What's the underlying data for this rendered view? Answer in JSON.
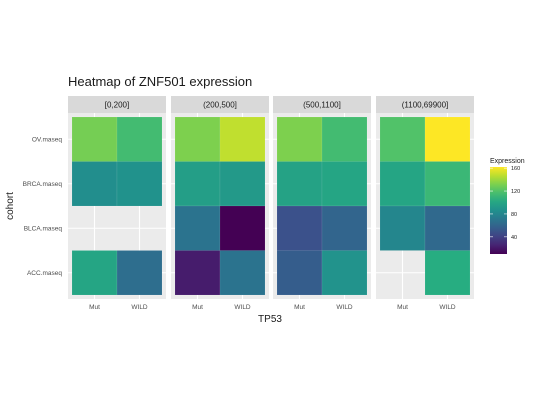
{
  "chart_data": {
    "type": "heatmap",
    "title": "Heatmap of ZNF501 expression",
    "xlabel": "TP53",
    "ylabel": "cohort",
    "x_categories": [
      "Mut",
      "WILD"
    ],
    "y_categories": [
      "ACC.maseq",
      "BLCA.maseq",
      "BRCA.maseq",
      "OV.maseq"
    ],
    "facets": [
      {
        "label": "[0,200]",
        "values": {
          "OV.maseq": {
            "Mut": 130,
            "WILD": 115
          },
          "BRCA.maseq": {
            "Mut": 85,
            "WILD": 87
          },
          "BLCA.maseq": {
            "Mut": null,
            "WILD": null
          },
          "ACC.maseq": {
            "Mut": 100,
            "WILD": 65
          }
        }
      },
      {
        "label": "(200,500]",
        "values": {
          "OV.maseq": {
            "Mut": 132,
            "WILD": 148
          },
          "BRCA.maseq": {
            "Mut": 95,
            "WILD": 92
          },
          "BLCA.maseq": {
            "Mut": 68,
            "WILD": 10
          },
          "ACC.maseq": {
            "Mut": 22,
            "WILD": 68
          }
        }
      },
      {
        "label": "(500,1100]",
        "values": {
          "OV.maseq": {
            "Mut": 132,
            "WILD": 115
          },
          "BRCA.maseq": {
            "Mut": 98,
            "WILD": 100
          },
          "BLCA.maseq": {
            "Mut": 48,
            "WILD": 60
          },
          "ACC.maseq": {
            "Mut": 55,
            "WILD": 88
          }
        }
      },
      {
        "label": "(1100,69900]",
        "values": {
          "OV.maseq": {
            "Mut": 120,
            "WILD": 162
          },
          "BRCA.maseq": {
            "Mut": 100,
            "WILD": 112
          },
          "BLCA.maseq": {
            "Mut": 80,
            "WILD": 62
          },
          "ACC.maseq": {
            "Mut": null,
            "WILD": 105
          }
        }
      }
    ],
    "legend": {
      "title": "Expression",
      "range": [
        10,
        162
      ],
      "ticks": [
        40,
        80,
        120,
        160
      ],
      "position": "right"
    },
    "colormap": "viridis",
    "grid": true
  },
  "colors": {
    "panel_bg": "#ebebeb",
    "strip_bg": "#d9d9d9",
    "grid": "#ffffff"
  }
}
